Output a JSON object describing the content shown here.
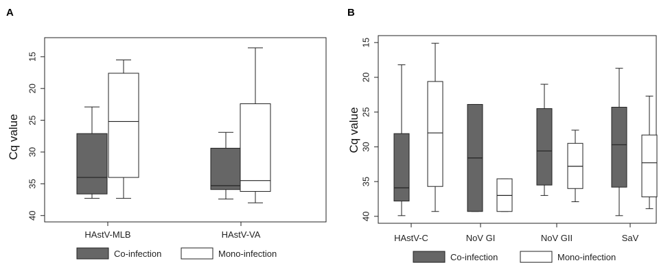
{
  "chart_data": [
    {
      "type": "boxplot",
      "panel": "A",
      "ylabel": "Cq value",
      "y_reversed": true,
      "ylim": [
        41,
        12
      ],
      "yticks": [
        15,
        20,
        25,
        30,
        35,
        40
      ],
      "categories": [
        "HAstV-MLB",
        "HAstV-VA"
      ],
      "legend": [
        "Co-infection",
        "Mono-infection"
      ],
      "series": [
        {
          "name": "Co-infection",
          "color": "#666666",
          "boxes": [
            {
              "whisker_low": 22.9,
              "q1": 27.1,
              "median": 34.0,
              "q3": 36.6,
              "whisker_high": 37.3
            },
            {
              "whisker_low": 26.9,
              "q1": 29.4,
              "median": 35.3,
              "q3": 35.9,
              "whisker_high": 37.4
            }
          ]
        },
        {
          "name": "Mono-infection",
          "color": "#ffffff",
          "boxes": [
            {
              "whisker_low": 15.5,
              "q1": 17.6,
              "median": 25.2,
              "q3": 34.0,
              "whisker_high": 37.3
            },
            {
              "whisker_low": 13.6,
              "q1": 22.4,
              "median": 34.5,
              "q3": 36.2,
              "whisker_high": 38.0
            }
          ]
        }
      ]
    },
    {
      "type": "boxplot",
      "panel": "B",
      "ylabel": "Cq value",
      "y_reversed": true,
      "ylim": [
        41,
        14
      ],
      "yticks": [
        15,
        20,
        25,
        30,
        35,
        40
      ],
      "categories": [
        "HAstV-C",
        "NoV GI",
        "NoV GII",
        "SaV"
      ],
      "legend": [
        "Co-infection",
        "Mono-infection"
      ],
      "series": [
        {
          "name": "Co-infection",
          "color": "#666666",
          "boxes": [
            {
              "whisker_low": 18.2,
              "q1": 28.1,
              "median": 35.9,
              "q3": 37.8,
              "whisker_high": 39.9
            },
            {
              "whisker_low": 23.9,
              "q1": 23.9,
              "median": 31.6,
              "q3": 39.3,
              "whisker_high": 39.3
            },
            {
              "whisker_low": 21.0,
              "q1": 24.5,
              "median": 30.6,
              "q3": 35.5,
              "whisker_high": 37.0
            },
            {
              "whisker_low": 18.7,
              "q1": 24.3,
              "median": 29.7,
              "q3": 35.8,
              "whisker_high": 39.9
            }
          ]
        },
        {
          "name": "Mono-infection",
          "color": "#ffffff",
          "boxes": [
            {
              "whisker_low": 15.1,
              "q1": 20.6,
              "median": 28.0,
              "q3": 35.7,
              "whisker_high": 39.3
            },
            {
              "whisker_low": 34.6,
              "q1": 34.6,
              "median": 37.0,
              "q3": 39.3,
              "whisker_high": 39.3
            },
            {
              "whisker_low": 27.6,
              "q1": 29.5,
              "median": 32.8,
              "q3": 36.0,
              "whisker_high": 37.9
            },
            {
              "whisker_low": 22.7,
              "q1": 28.3,
              "median": 32.3,
              "q3": 37.2,
              "whisker_high": 38.9
            }
          ]
        }
      ]
    }
  ],
  "colors": {
    "co_infection": "#666666",
    "mono_infection": "#ffffff",
    "axis": "#222222"
  }
}
